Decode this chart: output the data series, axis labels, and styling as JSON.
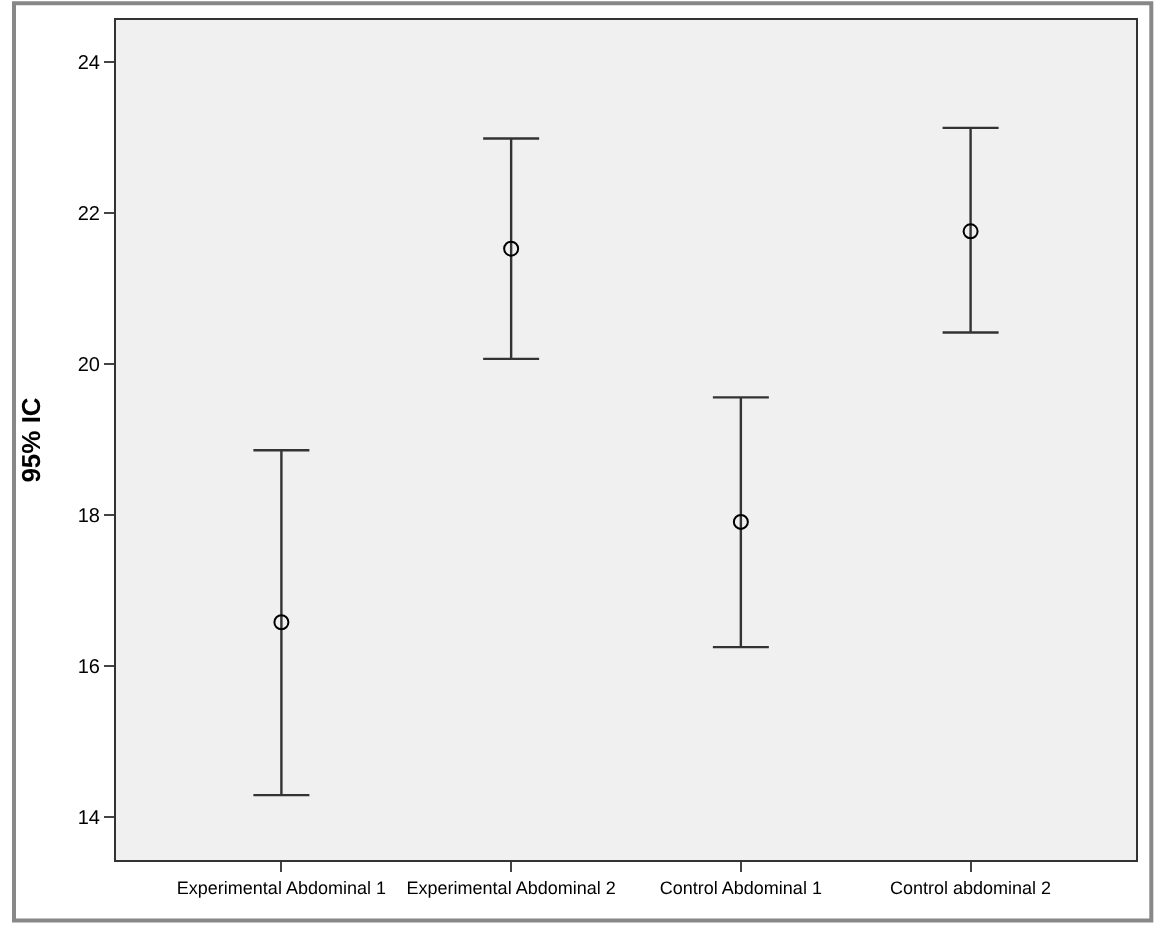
{
  "chart_data": {
    "type": "scatter",
    "ylabel": "95% IC",
    "categories": [
      "Experimental Abdominal 1",
      "Experimental Abdominal 2",
      "Control Abdominal 1",
      "Control abdominal 2"
    ],
    "values": [
      16.58,
      21.53,
      17.91,
      21.76
    ],
    "errors": [
      [
        14.29,
        18.86
      ],
      [
        20.07,
        22.99
      ],
      [
        16.25,
        19.56
      ],
      [
        20.42,
        23.13
      ]
    ],
    "color": "#000000",
    "marker": "circle",
    "grid": false,
    "legend": false,
    "ylim": [
      13.43,
      24.56
    ],
    "yticks": [
      14,
      16,
      18,
      20,
      22,
      24
    ]
  }
}
